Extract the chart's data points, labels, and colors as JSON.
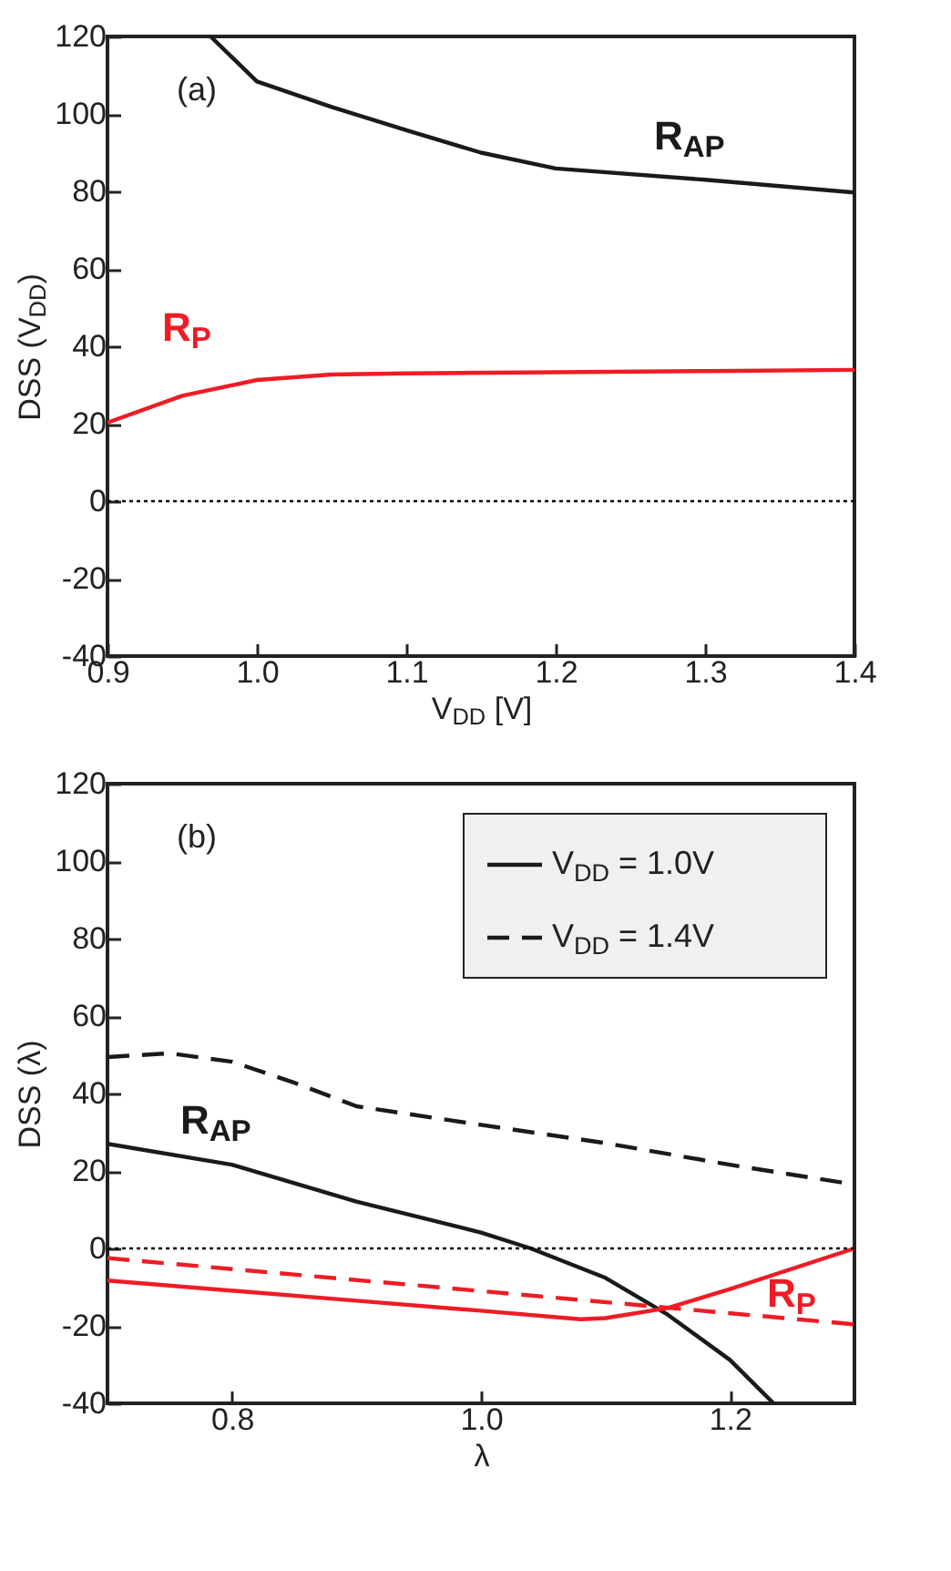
{
  "chart_data": [
    {
      "type": "line",
      "xlabel": "V$_{DD}$ [V]",
      "ylabel": "DSS (V$_{DD}$)",
      "xlim": [
        0.9,
        1.4
      ],
      "xticks": [
        0.9,
        {
          "value": 1,
          "label": "1.0"
        },
        1.1,
        1.2,
        1.3,
        1.4
      ],
      "ylim": [
        -40,
        120
      ],
      "yticks": [
        -40,
        -20,
        0,
        20,
        40,
        60,
        80,
        100,
        120
      ],
      "series": [
        {
          "color": "#1a1a1a",
          "x": [
            0.969,
            1.0,
            1.05,
            1.1,
            1.15,
            1.2,
            1.3,
            1.4
          ],
          "values": [
            120,
            108.4,
            101.8,
            95.8,
            90,
            85.9,
            83,
            79.7
          ]
        },
        {
          "color": "#ee1c25",
          "x": [
            0.9,
            0.95,
            1.0,
            1.05,
            1.1,
            1.2,
            1.3,
            1.4
          ],
          "values": [
            20.3,
            27.2,
            31.3,
            32.7,
            33,
            33.3,
            33.6,
            33.9
          ]
        }
      ],
      "ref_lines": [
        {
          "axis": "y",
          "value": 0,
          "color": "#000000",
          "line_style": "dotted"
        }
      ],
      "annotations": [
        "(a)",
        "R$_{AP}$",
        "R$_{P}$"
      ]
    },
    {
      "type": "line",
      "xlabel": "λ",
      "ylabel": "DSS (λ)",
      "xlim": [
        0.7,
        1.3
      ],
      "xticks": [
        0.8,
        {
          "value": 1,
          "label": "1.0"
        },
        1.2
      ],
      "ylim": [
        -40,
        120
      ],
      "yticks": [
        -40,
        -20,
        0,
        20,
        40,
        60,
        80,
        100,
        120
      ],
      "legend": "top right",
      "series": [
        {
          "name": "V$_{DD}$ = 1.0V",
          "color": "#1a1a1a",
          "line_style": "solid",
          "x": [
            0.7,
            0.8,
            0.9,
            1.0,
            1.04,
            1.1,
            1.15,
            1.2,
            1.235
          ],
          "values": [
            27,
            21.6,
            12.1,
            4.1,
            0,
            -7.6,
            -17.1,
            -28.8,
            -40
          ]
        },
        {
          "name": "V$_{DD}$ = 1.4V",
          "color": "#1a1a1a",
          "line_style": "dashed",
          "x": [
            0.7,
            0.75,
            0.8,
            0.85,
            0.9,
            1.0,
            1.1,
            1.2,
            1.3
          ],
          "values": [
            49.4,
            50.4,
            48.2,
            42.8,
            36.7,
            31.9,
            27.2,
            21.6,
            16.5
          ]
        },
        {
          "color": "#ee1c25",
          "line_style": "solid",
          "x": [
            0.7,
            0.9,
            1.0,
            1.08,
            1.1,
            1.15,
            1.2,
            1.3
          ],
          "values": [
            -8.3,
            -13.5,
            -16.1,
            -18.3,
            -18,
            -15.4,
            -10.5,
            0
          ]
        },
        {
          "color": "#ee1c25",
          "line_style": "dashed",
          "x": [
            0.7,
            1.0,
            1.3
          ],
          "values": [
            -2.5,
            -11,
            -19.6
          ]
        }
      ],
      "ref_lines": [
        {
          "axis": "y",
          "value": 0,
          "color": "#000000",
          "line_style": "dotted"
        }
      ],
      "annotations": [
        "(b)",
        "R$_{AP}$",
        "R$_{P}$"
      ]
    }
  ]
}
